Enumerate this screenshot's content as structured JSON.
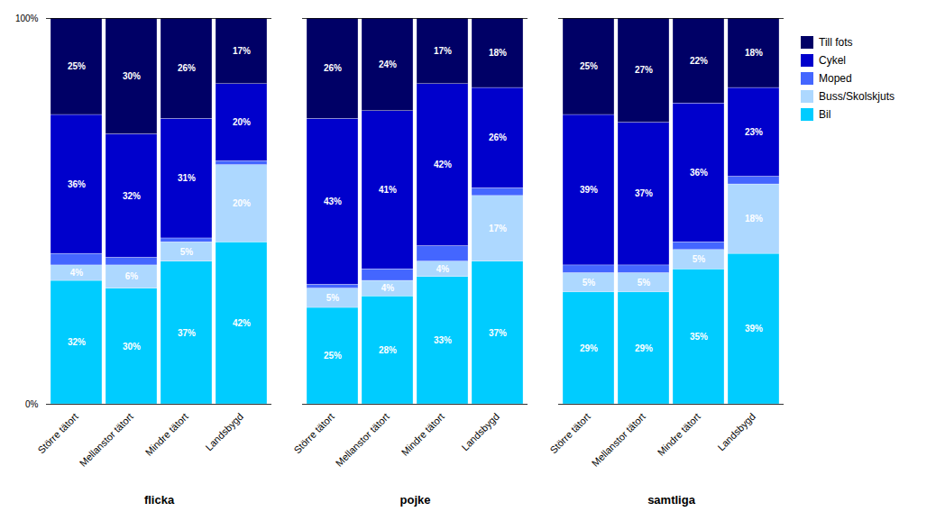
{
  "chart_data": {
    "type": "bar",
    "stacked": true,
    "data_labels": true,
    "groups": [
      "flicka",
      "pojke",
      "samtliga"
    ],
    "categories": [
      "Större tätort",
      "Mellanstor tätort",
      "Mindre tätort",
      "Landsbygd",
      "Större tätort",
      "Mellanstor tätort",
      "Mindre tätort",
      "Landsbygd",
      "Större tätort",
      "Mellanstor tätort",
      "Mindre tätort",
      "Landsbygd"
    ],
    "series": [
      {
        "name": "Bil",
        "color": "#00CCFF",
        "values": [
          32,
          30,
          37,
          42,
          25,
          28,
          33,
          37,
          29,
          29,
          35,
          39
        ],
        "value_labels": [
          "32%",
          "30%",
          "37%",
          "42%",
          "25%",
          "28%",
          "33%",
          "37%",
          "29%",
          "29%",
          "35%",
          "39%"
        ]
      },
      {
        "name": "Buss/Skolskjuts",
        "color": "#ADD8FF",
        "values": [
          4,
          6,
          5,
          20,
          5,
          4,
          4,
          17,
          5,
          5,
          5,
          18
        ],
        "value_labels": [
          "4%",
          "6%",
          "5%",
          "20%",
          "5%",
          "4%",
          "4%",
          "17%",
          "5%",
          "5%",
          "5%",
          "18%"
        ]
      },
      {
        "name": "Moped",
        "color": "#4466FF",
        "values": [
          3,
          2,
          1,
          1,
          1,
          3,
          4,
          2,
          2,
          2,
          2,
          2
        ]
      },
      {
        "name": "Cykel",
        "color": "#0000CC",
        "values": [
          36,
          32,
          31,
          20,
          43,
          41,
          42,
          26,
          39,
          37,
          36,
          23
        ],
        "value_labels": [
          "36%",
          "32%",
          "31%",
          "20%",
          "43%",
          "41%",
          "42%",
          "26%",
          "39%",
          "37%",
          "36%",
          "23%"
        ]
      },
      {
        "name": "Till fots",
        "color": "#000066",
        "values": [
          25,
          30,
          26,
          17,
          26,
          24,
          17,
          18,
          25,
          27,
          22,
          18
        ],
        "value_labels": [
          "25%",
          "30%",
          "26%",
          "17%",
          "26%",
          "24%",
          "17%",
          "18%",
          "25%",
          "27%",
          "22%",
          "18%"
        ]
      }
    ],
    "ylim": [
      0,
      100
    ],
    "yticks": [
      {
        "value": 0,
        "label": "0%"
      },
      {
        "value": 100,
        "label": "100%"
      }
    ],
    "grid": false,
    "legend": "right"
  }
}
